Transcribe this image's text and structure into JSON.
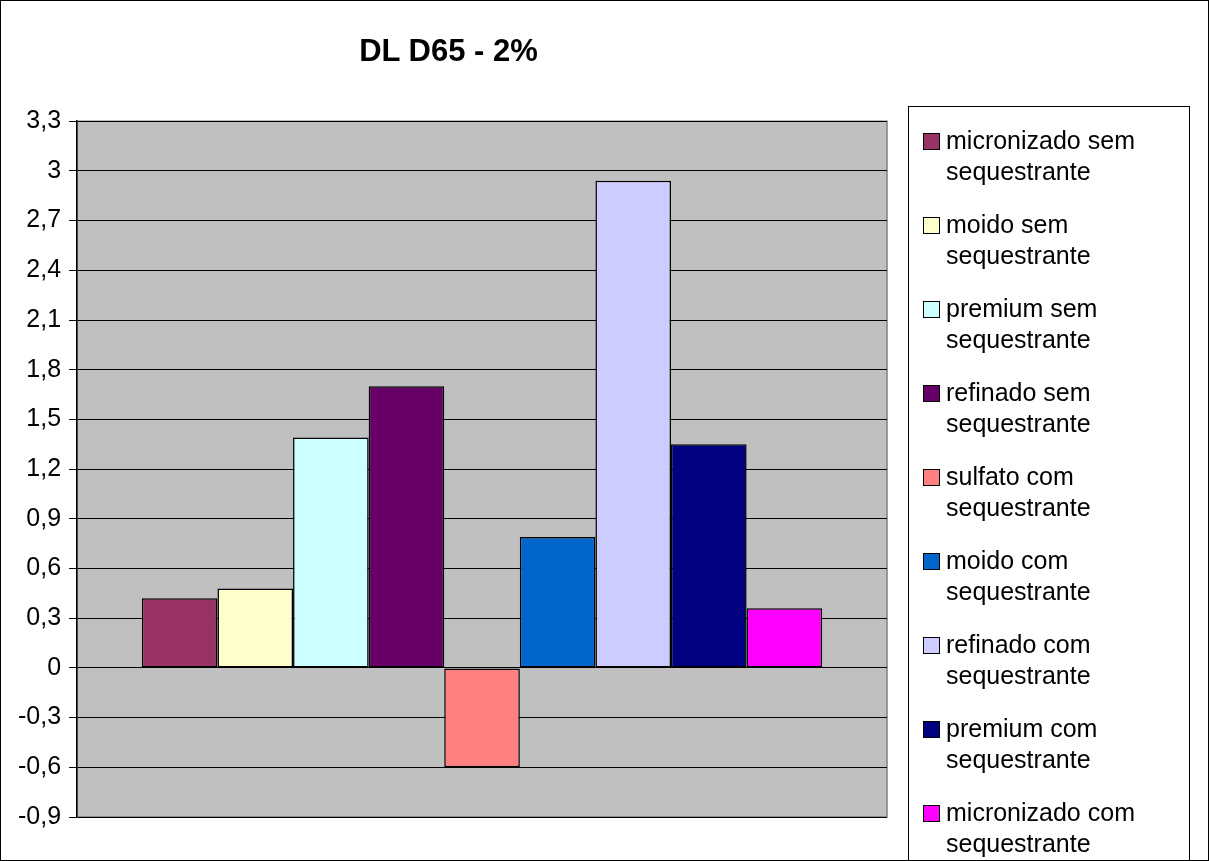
{
  "chart_data": {
    "type": "bar",
    "title": "DL D65 - 2%",
    "categories": [
      null
    ],
    "series": [
      {
        "name": "micronizado sem sequestrante",
        "color": "#993366",
        "values": [
          0.42
        ]
      },
      {
        "name": "moido sem sequestrante",
        "color": "#ffffcc",
        "values": [
          0.48
        ]
      },
      {
        "name": "premium sem sequestrante",
        "color": "#ccffff",
        "values": [
          1.39
        ]
      },
      {
        "name": "refinado sem sequestrante",
        "color": "#660066",
        "values": [
          1.7
        ]
      },
      {
        "name": "sulfato com sequestrante",
        "color": "#ff8080",
        "values": [
          -0.6
        ]
      },
      {
        "name": "moido com sequestrante",
        "color": "#0066cc",
        "values": [
          0.79
        ]
      },
      {
        "name": "refinado com sequestrante",
        "color": "#ccccff",
        "values": [
          2.94
        ]
      },
      {
        "name": "premium com sequestrante",
        "color": "#000080",
        "values": [
          1.35
        ]
      },
      {
        "name": "micronizado com sequestrante",
        "color": "#ff00ff",
        "values": [
          0.36
        ]
      }
    ],
    "ylim": [
      -0.9,
      3.3
    ],
    "yticks": [
      {
        "value": -0.9,
        "label": "-0,9"
      },
      {
        "value": -0.6,
        "label": "-0,6"
      },
      {
        "value": -0.3,
        "label": "-0,3"
      },
      0,
      {
        "value": 0.3,
        "label": "0,3"
      },
      {
        "value": 0.6,
        "label": "0,6"
      },
      {
        "value": 0.9,
        "label": "0,9"
      },
      {
        "value": 1.2,
        "label": "1,2"
      },
      {
        "value": 1.5,
        "label": "1,5"
      },
      {
        "value": 1.8,
        "label": "1,8"
      },
      {
        "value": 2.1,
        "label": "2,1"
      },
      {
        "value": 2.4,
        "label": "2,4"
      },
      {
        "value": 2.7,
        "label": "2,7"
      },
      3,
      {
        "value": 3.3,
        "label": "3,3"
      }
    ],
    "grid": "y",
    "legend": "right",
    "tick_labels": "y"
  }
}
